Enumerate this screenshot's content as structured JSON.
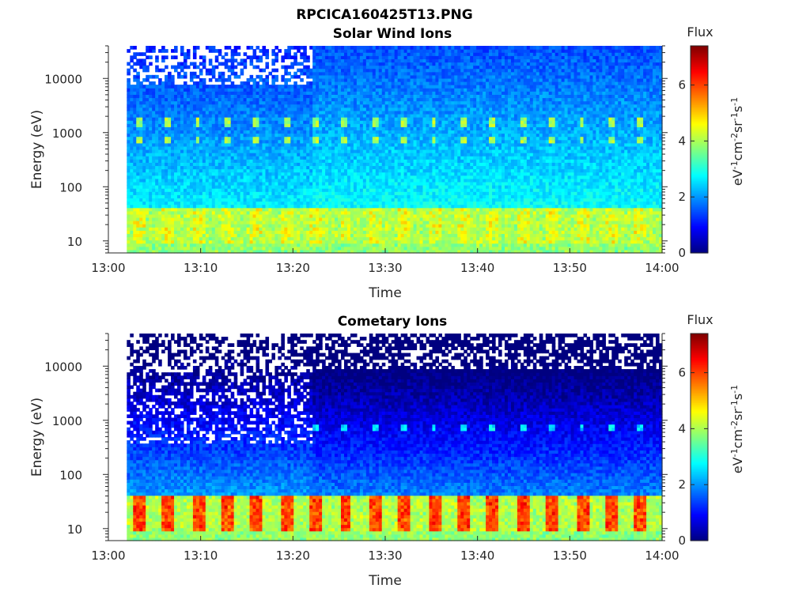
{
  "figure": {
    "title": "RPCICA160425T13.PNG"
  },
  "colors": {
    "axis": "#262626",
    "colormap": "jet"
  },
  "chart_data": [
    {
      "type": "heatmap",
      "title": "Solar Wind Ions",
      "xlabel": "Time",
      "ylabel": "Energy (eV)",
      "x_ticks": [
        "13:00",
        "13:10",
        "13:20",
        "13:30",
        "13:40",
        "13:50",
        "14:00"
      ],
      "x_range": [
        "13:00",
        "14:00"
      ],
      "data_start": "13:02",
      "y_scale": "log",
      "y_ticks": [
        "10",
        "100",
        "1000",
        "10000"
      ],
      "ylim": [
        6,
        40000
      ],
      "colorbar": {
        "label": "Flux",
        "units": "eV-1cm-2sr-1s-1",
        "ticks": [
          "0",
          "2",
          "4",
          "6"
        ],
        "range": [
          0,
          7.4
        ]
      },
      "features": {
        "low_energy_band_eV": [
          12,
          35
        ],
        "low_energy_peak_flux": 4.8,
        "high_energy_peaks_eV": [
          750,
          1600
        ],
        "high_energy_peak_flux": 3.8,
        "sweep_period_min": 3.2,
        "transition_time": "13:22"
      }
    },
    {
      "type": "heatmap",
      "title": "Cometary Ions",
      "xlabel": "Time",
      "ylabel": "Energy (eV)",
      "x_ticks": [
        "13:00",
        "13:10",
        "13:20",
        "13:30",
        "13:40",
        "13:50",
        "14:00"
      ],
      "x_range": [
        "13:00",
        "14:00"
      ],
      "data_start": "13:02",
      "y_scale": "log",
      "y_ticks": [
        "10",
        "100",
        "1000",
        "10000"
      ],
      "ylim": [
        6,
        40000
      ],
      "colorbar": {
        "label": "Flux",
        "units": "eV-1cm-2sr-1s-1",
        "ticks": [
          "0",
          "2",
          "4",
          "6"
        ],
        "range": [
          0,
          7.4
        ]
      },
      "features": {
        "low_energy_band_eV": [
          12,
          35
        ],
        "low_energy_peak_flux": 6.4,
        "high_energy_peaks_eV": [
          750
        ],
        "high_energy_peak_flux": 2.4,
        "sweep_period_min": 3.2,
        "transition_time": "13:22"
      }
    }
  ]
}
